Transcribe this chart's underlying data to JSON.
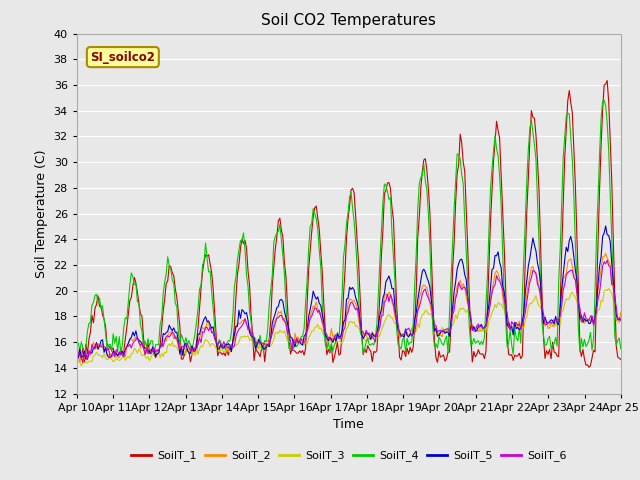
{
  "title": "Soil CO2 Temperatures",
  "xlabel": "Time",
  "ylabel": "Soil Temperature (C)",
  "ylim": [
    12,
    40
  ],
  "yticks": [
    12,
    14,
    16,
    18,
    20,
    22,
    24,
    26,
    28,
    30,
    32,
    34,
    36,
    38,
    40
  ],
  "xtick_labels": [
    "Apr 10",
    "Apr 11",
    "Apr 12",
    "Apr 13",
    "Apr 14",
    "Apr 15",
    "Apr 16",
    "Apr 17",
    "Apr 18",
    "Apr 19",
    "Apr 20",
    "Apr 21",
    "Apr 22",
    "Apr 23",
    "Apr 24",
    "Apr 25"
  ],
  "annotation_text": "SI_soilco2",
  "annotation_color": "#8B0000",
  "annotation_bg": "#FFFF99",
  "series_colors": {
    "SoilT_1": "#CC0000",
    "SoilT_2": "#FF8C00",
    "SoilT_3": "#CCCC00",
    "SoilT_4": "#00CC00",
    "SoilT_5": "#0000CC",
    "SoilT_6": "#CC00CC"
  },
  "fig_bg": "#E8E8E8",
  "plot_bg": "#E8E8E8",
  "grid_color": "#FFFFFF",
  "legend_entries": [
    "SoilT_1",
    "SoilT_2",
    "SoilT_3",
    "SoilT_4",
    "SoilT_5",
    "SoilT_6"
  ]
}
